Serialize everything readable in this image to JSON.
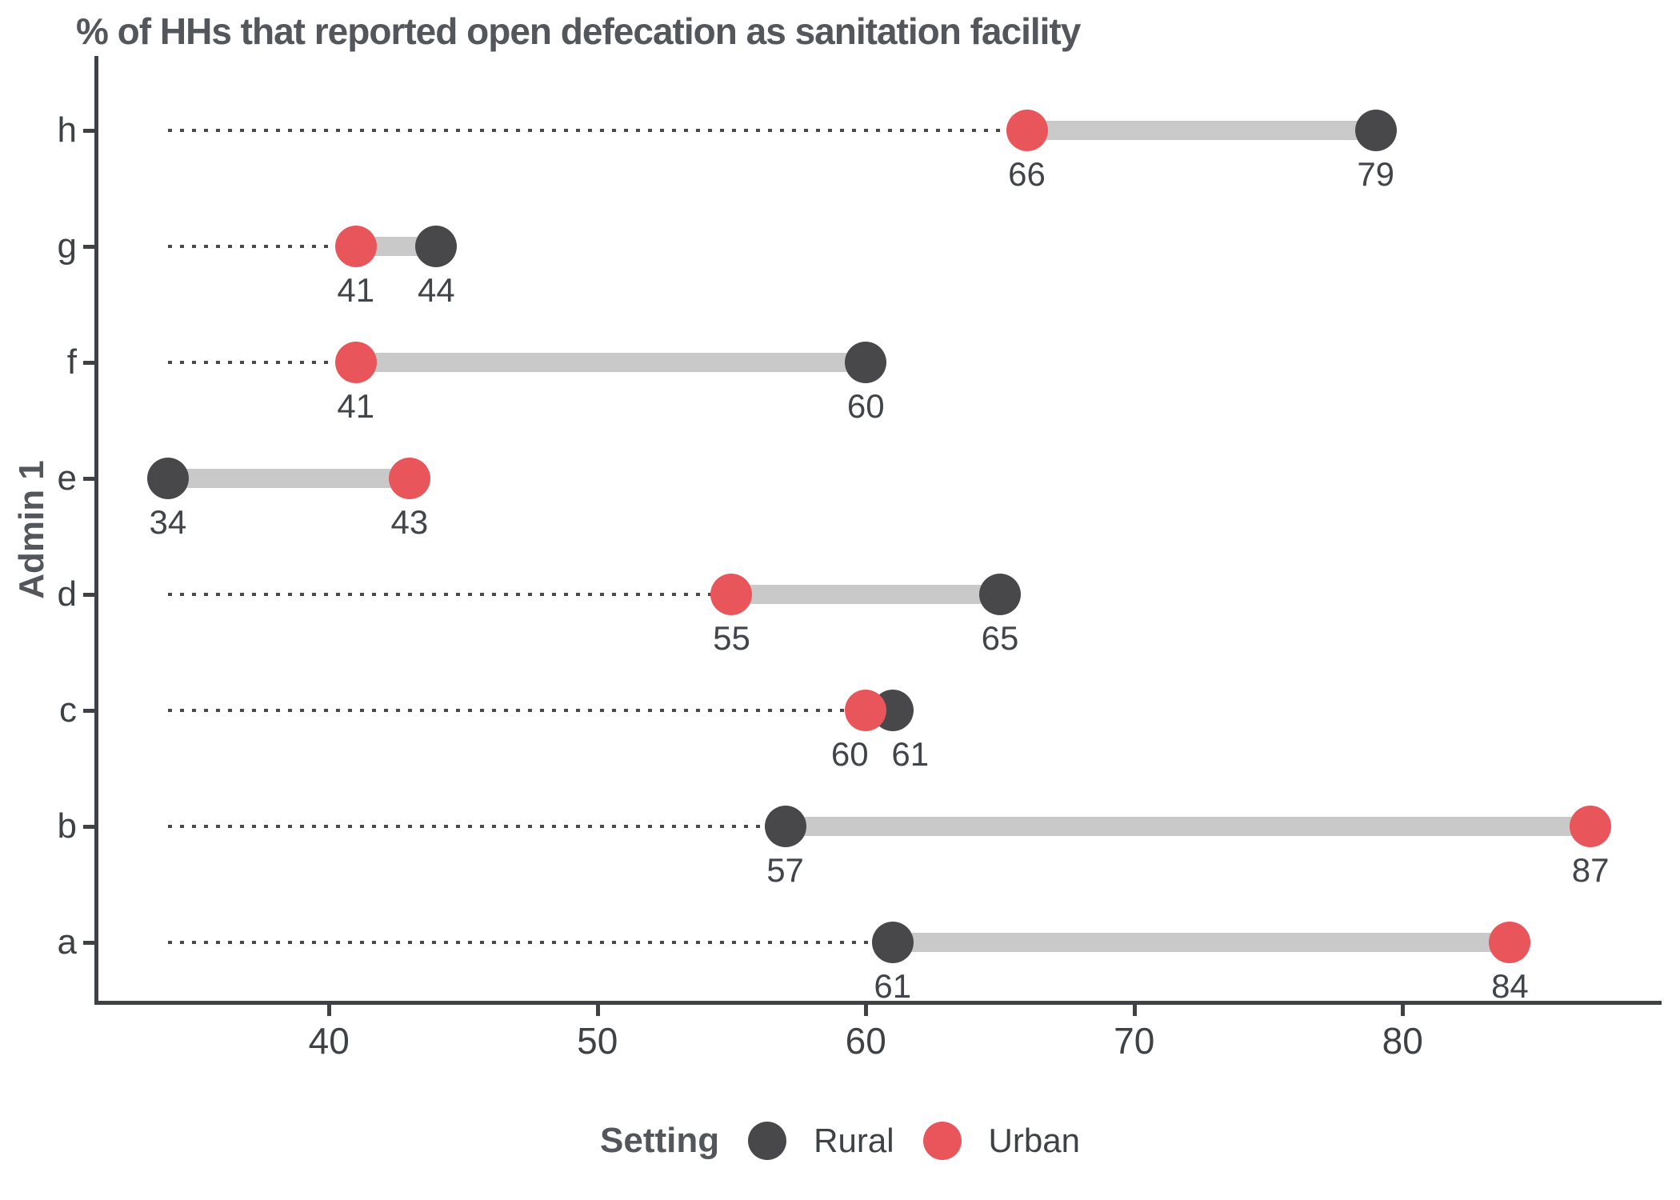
{
  "title": "% of HHs that reported open defecation as sanitation facility",
  "chart_data": {
    "type": "scatter",
    "variant": "dumbbell",
    "title": "% of HHs that reported open defecation as sanitation facility",
    "xlabel": "",
    "ylabel": "Admin 1",
    "grid": false,
    "xlim": [
      31.35,
      89.65
    ],
    "x_ticks": [
      40,
      50,
      60,
      70,
      80
    ],
    "categories_top_to_bottom": [
      "h",
      "g",
      "f",
      "e",
      "d",
      "c",
      "b",
      "a"
    ],
    "series": [
      {
        "name": "Rural",
        "color": "#48484A",
        "values": [
          79,
          44,
          60,
          34,
          65,
          61,
          57,
          61
        ],
        "label_dx": [
          0,
          0,
          0,
          0,
          0,
          22,
          0,
          0
        ]
      },
      {
        "name": "Urban",
        "color": "#E8555A",
        "values": [
          66,
          41,
          41,
          43,
          55,
          60,
          87,
          84
        ],
        "label_dx": [
          0,
          0,
          0,
          0,
          0,
          -20,
          0,
          0
        ]
      }
    ],
    "value_labels_shown": true,
    "dotted_guide_from_value": 34,
    "connector_color": "#C9C9C9",
    "dotted_guide_color": "#4A4A4A",
    "legend": {
      "title": "Setting",
      "position": "bottom",
      "entries": [
        "Rural",
        "Urban"
      ]
    }
  },
  "colors": {
    "rural": "#48484A",
    "urban": "#E8555A",
    "connector": "#C9C9C9",
    "axis": "#3E4145",
    "text_dark": "#53565A",
    "text_axis": "#3F4245"
  },
  "legend": {
    "title": "Setting",
    "rural_label": "Rural",
    "urban_label": "Urban"
  }
}
